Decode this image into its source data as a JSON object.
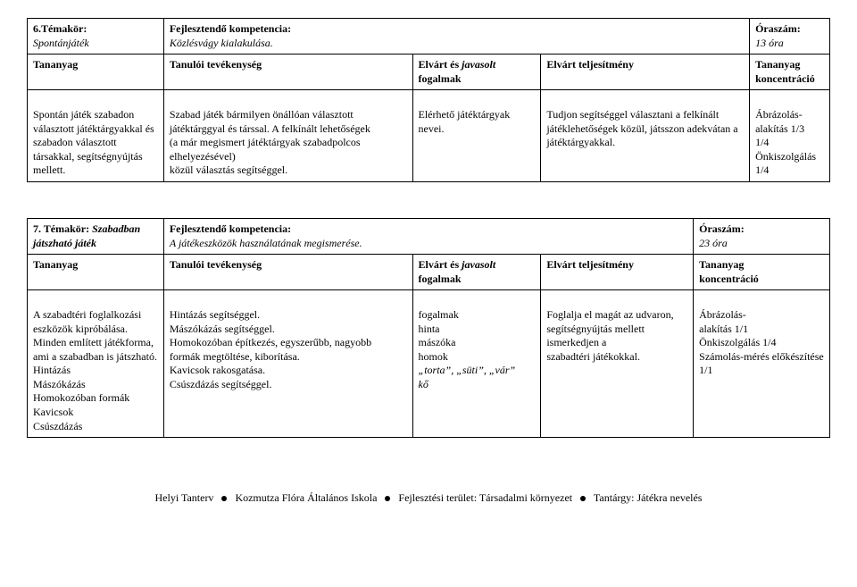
{
  "table1": {
    "header": {
      "c1_line1": "6.Témakör:",
      "c1_line2": "Spontánjáték",
      "c1_line3": "Tananyag",
      "c2_line1": "Fejlesztendő kompetencia:",
      "c2_line2": "Közlésvágy kialakulása.",
      "c2_line3": "Tanulói tevékenység",
      "c3_line1": "Elvárt és",
      "c3_line2": "javasolt",
      "c3_line3": "fogalmak",
      "c4": "Elvárt teljesítmény",
      "c5_line1": "Óraszám:",
      "c5_line2": "13 óra",
      "c5_line3": "Tananyag",
      "c5_line4": "koncentráció"
    },
    "body": {
      "c1": "Spontán játék szabadon választott játéktárgyakkal és szabadon választott társakkal, segítségnyújtás mellett.",
      "c2": "Szabad játék bármilyen önállóan választott\njátéktárggyal és társsal. A felkínált lehetőségek\n(a már megismert játéktárgyak szabadpolcos\nelhelyezésével)\nközül választás segítséggel.",
      "c3": "Elérhető játéktárgyak nevei.",
      "c4": "Tudjon segítséggel választani a felkínált játéklehetőségek közül, játsszon adekvátan a játéktárgyakkal.",
      "c5": "Ábrázolás-\nalakítás 1/3\n1/4\nÖnkiszolgálás 1/4"
    }
  },
  "table2": {
    "header": {
      "c1_line1": "7. Témakör:",
      "c1_line2a": "Szabadban",
      "c1_line2b": "játszható játék",
      "c1_line3": "Tananyag",
      "c2_line1": "Fejlesztendő kompetencia:",
      "c2_line2": "A játékeszközök használatának megismerése.",
      "c2_line3": "Tanulói tevékenység",
      "c3_line1": "Elvárt és",
      "c3_line2": "javasolt",
      "c3_line3": "fogalmak",
      "c4": "Elvárt teljesítmény",
      "c5_line1": "Óraszám:",
      "c5_line2": "23 óra",
      "c5_line3": "Tananyag",
      "c5_line4": "koncentráció"
    },
    "body": {
      "c1": "A szabadtéri foglalkozási eszközök kipróbálása.\nMinden említett játékforma, ami a szabadban is játszható.\nHintázás\nMászókázás\nHomokozóban formák\nKavicsok\nCsúszdázás",
      "c2": "Hintázás segítséggel.\nMászókázás segítséggel.\nHomokozóban építkezés, egyszerűbb, nagyobb\nformák megtöltése, kiborítása.\nKavicsok rakosgatása.\nCsúszdázás segítséggel.",
      "c3_plain1": "fogalmak",
      "c3_plain2": "hinta",
      "c3_plain3": "mászóka",
      "c3_plain4": "homok",
      "c3_italic": "„torta”, „süti”, „vár”",
      "c3_plain5": "kő",
      "c4": "Foglalja el magát az udvaron,\nsegítségnyújtás mellett ismerkedjen a\nszabadtéri játékokkal.",
      "c5": "Ábrázolás-\nalakítás 1/1\nÖnkiszolgálás 1/4\nSzámolás-mérés előkészítése 1/1"
    }
  },
  "footer": {
    "p1": "Helyi Tanterv",
    "p2": "Kozmutza Flóra Általános Iskola",
    "p3": "Fejlesztési terület: Társadalmi környezet",
    "p4": "Tantárgy: Játékra nevelés"
  }
}
